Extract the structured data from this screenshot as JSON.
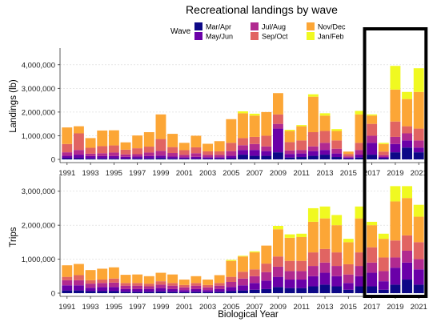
{
  "chart_data": {
    "type": "bar",
    "stacked": true,
    "title": "Recreational landings by wave",
    "xlabel": "Biological Year",
    "legend": {
      "title": "Wave",
      "placement": "top-right",
      "entries": [
        {
          "name": "Mar/Apr",
          "color": "#0d0887"
        },
        {
          "name": "May/Jun",
          "color": "#6a00a8"
        },
        {
          "name": "Jul/Aug",
          "color": "#b12a90"
        },
        {
          "name": "Sep/Oct",
          "color": "#e16462"
        },
        {
          "name": "Nov/Dec",
          "color": "#fca636"
        },
        {
          "name": "Jan/Feb",
          "color": "#f0f921"
        }
      ]
    },
    "x_tick_labels": [
      "1991",
      "1993",
      "1995",
      "1997",
      "1999",
      "2001",
      "2003",
      "2005",
      "2007",
      "2009",
      "2011",
      "2013",
      "2015",
      "2017",
      "2019",
      "2021"
    ],
    "highlight": {
      "from": 2017,
      "to": 2021
    },
    "panels": [
      {
        "ylabel": "Landings (lb)",
        "ylim": [
          0,
          4500000
        ],
        "y_ticks": [
          0,
          1000000,
          2000000,
          3000000,
          4000000
        ],
        "y_tick_labels": [
          "0",
          "1,000,000",
          "2,000,000",
          "3,000,000",
          "4,000,000"
        ],
        "grid": true,
        "x": [
          1991,
          1992,
          1993,
          1994,
          1995,
          1996,
          1997,
          1998,
          1999,
          2000,
          2001,
          2002,
          2003,
          2004,
          2005,
          2006,
          2007,
          2008,
          2009,
          2010,
          2011,
          2012,
          2013,
          2014,
          2015,
          2016,
          2017,
          2018,
          2019,
          2020,
          2021
        ],
        "series": [
          {
            "name": "Mar/Apr",
            "values": [
              50000,
              50000,
              40000,
              40000,
              40000,
              30000,
              40000,
              40000,
              60000,
              40000,
              30000,
              30000,
              30000,
              30000,
              50000,
              200000,
              150000,
              150000,
              300000,
              80000,
              100000,
              150000,
              200000,
              100000,
              30000,
              80000,
              200000,
              50000,
              300000,
              500000,
              300000
            ]
          },
          {
            "name": "May/Jun",
            "values": [
              100000,
              150000,
              100000,
              100000,
              100000,
              80000,
              80000,
              100000,
              100000,
              80000,
              60000,
              80000,
              60000,
              60000,
              100000,
              200000,
              250000,
              200000,
              1000000,
              150000,
              150000,
              200000,
              200000,
              150000,
              50000,
              120000,
              500000,
              50000,
              350000,
              300000,
              200000
            ]
          },
          {
            "name": "Jul/Aug",
            "values": [
              150000,
              200000,
              100000,
              120000,
              150000,
              100000,
              100000,
              150000,
              200000,
              150000,
              100000,
              150000,
              100000,
              100000,
              200000,
              200000,
              250000,
              200000,
              200000,
              150000,
              150000,
              200000,
              300000,
              200000,
              50000,
              200000,
              300000,
              80000,
              300000,
              300000,
              300000
            ]
          },
          {
            "name": "Sep/Oct",
            "values": [
              350000,
              700000,
              250000,
              300000,
              300000,
              200000,
              250000,
              250000,
              500000,
              250000,
              200000,
              250000,
              150000,
              150000,
              350000,
              300000,
              300000,
              450000,
              400000,
              350000,
              400000,
              600000,
              500000,
              350000,
              100000,
              300000,
              500000,
              150000,
              650000,
              300000,
              500000
            ]
          },
          {
            "name": "Nov/Dec",
            "values": [
              700000,
              300000,
              410000,
              660000,
              640000,
              310000,
              540000,
              610000,
              1040000,
              560000,
              310000,
              490000,
              320000,
              430000,
              1000000,
              1050000,
              900000,
              1000000,
              900000,
              470000,
              600000,
              1500000,
              650000,
              400000,
              100000,
              1200000,
              350000,
              320000,
              1350000,
              1150000,
              1550000
            ]
          },
          {
            "name": "Jan/Feb",
            "values": [
              0,
              0,
              0,
              0,
              0,
              0,
              0,
              0,
              0,
              0,
              0,
              0,
              0,
              0,
              0,
              80000,
              80000,
              0,
              0,
              50000,
              50000,
              100000,
              100000,
              80000,
              0,
              150000,
              50000,
              50000,
              1000000,
              300000,
              1000000
            ]
          }
        ]
      },
      {
        "ylabel": "Trips",
        "ylim": [
          0,
          3300000
        ],
        "y_ticks": [
          0,
          1000000,
          2000000,
          3000000
        ],
        "y_tick_labels": [
          "0",
          "1,000,000",
          "2,000,000",
          "3,000,000"
        ],
        "grid": true,
        "x": [
          1991,
          1992,
          1993,
          1994,
          1995,
          1996,
          1997,
          1998,
          1999,
          2000,
          2001,
          2002,
          2003,
          2004,
          2005,
          2006,
          2007,
          2008,
          2009,
          2010,
          2011,
          2012,
          2013,
          2014,
          2015,
          2016,
          2017,
          2018,
          2019,
          2020,
          2021
        ],
        "series": [
          {
            "name": "Mar/Apr",
            "values": [
              80000,
              80000,
              60000,
              60000,
              60000,
              40000,
              40000,
              40000,
              50000,
              40000,
              30000,
              40000,
              30000,
              40000,
              60000,
              80000,
              100000,
              120000,
              180000,
              150000,
              150000,
              200000,
              250000,
              200000,
              100000,
              200000,
              200000,
              100000,
              250000,
              400000,
              250000
            ]
          },
          {
            "name": "May/Jun",
            "values": [
              150000,
              150000,
              100000,
              120000,
              120000,
              80000,
              80000,
              80000,
              100000,
              80000,
              60000,
              80000,
              60000,
              80000,
              120000,
              150000,
              200000,
              250000,
              300000,
              250000,
              250000,
              300000,
              350000,
              300000,
              200000,
              300000,
              400000,
              250000,
              500000,
              500000,
              450000
            ]
          },
          {
            "name": "Jul/Aug",
            "values": [
              150000,
              150000,
              120000,
              120000,
              130000,
              100000,
              100000,
              80000,
              100000,
              100000,
              80000,
              100000,
              80000,
              100000,
              150000,
              200000,
              200000,
              250000,
              300000,
              250000,
              250000,
              300000,
              300000,
              300000,
              250000,
              300000,
              300000,
              300000,
              300000,
              350000,
              300000
            ]
          },
          {
            "name": "Sep/Oct",
            "values": [
              100000,
              150000,
              100000,
              100000,
              120000,
              80000,
              80000,
              80000,
              100000,
              80000,
              70000,
              80000,
              70000,
              80000,
              150000,
              200000,
              200000,
              250000,
              300000,
              300000,
              300000,
              400000,
              400000,
              400000,
              300000,
              400000,
              450000,
              400000,
              500000,
              450000,
              500000
            ]
          },
          {
            "name": "Nov/Dec",
            "values": [
              340000,
              330000,
              300000,
              320000,
              330000,
              240000,
              250000,
              220000,
              250000,
              250000,
              160000,
              200000,
              160000,
              230000,
              470000,
              450000,
              500000,
              530000,
              800000,
              680000,
              700000,
              900000,
              900000,
              800000,
              650000,
              1000000,
              650000,
              550000,
              1150000,
              1100000,
              750000
            ]
          },
          {
            "name": "Jan/Feb",
            "values": [
              0,
              0,
              0,
              0,
              0,
              0,
              0,
              0,
              0,
              0,
              0,
              0,
              0,
              0,
              30000,
              20000,
              30000,
              0,
              100000,
              100000,
              100000,
              400000,
              350000,
              300000,
              100000,
              350000,
              100000,
              150000,
              450000,
              350000,
              350000
            ]
          }
        ]
      }
    ]
  }
}
